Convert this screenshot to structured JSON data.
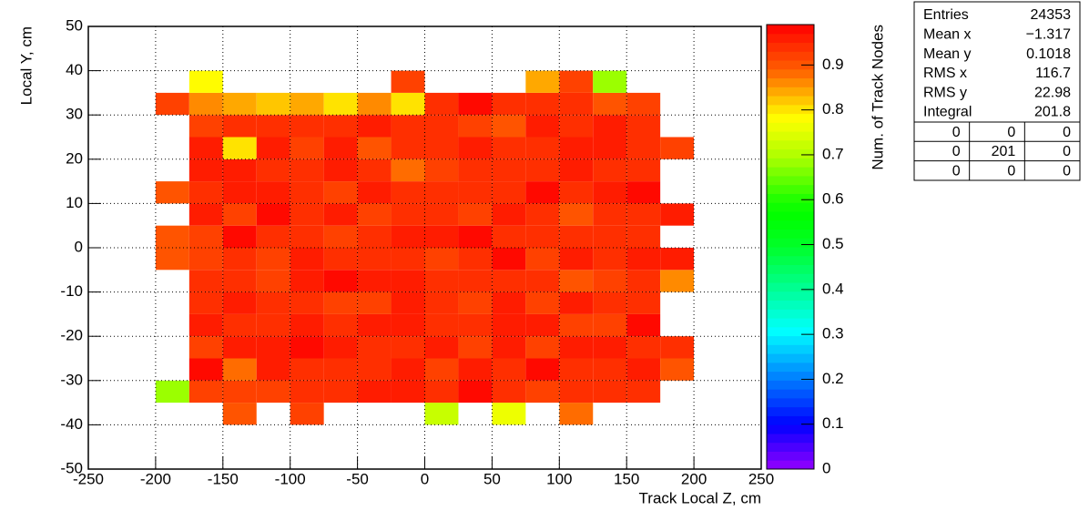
{
  "chart_data": {
    "type": "heatmap",
    "x_label": "Track Local Z, cm",
    "y_label": "Local Y, cm",
    "z_label": "Num. of Track Nodes",
    "xlim": [
      -250,
      250
    ],
    "ylim": [
      -50,
      50
    ],
    "zlim": [
      0,
      0.99
    ],
    "xticks": [
      -250,
      -200,
      -150,
      -100,
      -50,
      0,
      50,
      100,
      150,
      200,
      250
    ],
    "yticks": [
      -50,
      -40,
      -30,
      -20,
      -10,
      0,
      10,
      20,
      30,
      40,
      50
    ],
    "zticks": [
      0,
      0.1,
      0.2,
      0.3,
      0.4,
      0.5,
      0.6,
      0.7,
      0.8,
      0.9
    ],
    "grid": true,
    "palette": "rainbow",
    "xbins": [
      -200,
      -175,
      -150,
      -125,
      -100,
      -75,
      -50,
      -25,
      0,
      25,
      50,
      75,
      100,
      125,
      150,
      175,
      200
    ],
    "ybins": [
      -40,
      -35,
      -30,
      -25,
      -20,
      -15,
      -10,
      -5,
      0,
      5,
      10,
      15,
      20,
      25,
      30,
      35,
      40
    ],
    "z": [
      [
        null,
        null,
        0.91,
        null,
        0.93,
        null,
        null,
        null,
        0.72,
        null,
        0.76,
        null,
        0.89,
        null,
        null,
        null
      ],
      [
        0.68,
        0.93,
        0.93,
        0.93,
        0.95,
        0.94,
        0.96,
        0.96,
        0.94,
        0.98,
        0.95,
        0.93,
        0.95,
        0.95,
        0.95,
        null
      ],
      [
        null,
        0.98,
        0.88,
        0.96,
        0.94,
        0.94,
        0.95,
        0.96,
        0.93,
        0.96,
        0.95,
        0.98,
        0.95,
        0.94,
        0.96,
        0.9
      ],
      [
        null,
        0.93,
        0.96,
        0.96,
        0.98,
        0.96,
        0.94,
        0.95,
        0.96,
        0.93,
        0.96,
        0.92,
        0.96,
        0.97,
        0.95,
        0.95
      ],
      [
        null,
        0.97,
        0.94,
        0.94,
        0.96,
        0.94,
        0.96,
        0.96,
        0.95,
        0.94,
        0.96,
        0.96,
        0.92,
        0.92,
        0.98,
        null
      ],
      [
        null,
        0.94,
        0.96,
        0.94,
        0.94,
        0.92,
        0.92,
        0.96,
        0.94,
        0.92,
        0.97,
        0.93,
        0.96,
        0.94,
        0.94,
        null
      ],
      [
        null,
        0.94,
        0.95,
        0.93,
        0.96,
        0.98,
        0.97,
        0.97,
        0.95,
        0.94,
        0.94,
        0.94,
        0.9,
        0.93,
        0.95,
        0.87
      ],
      [
        0.91,
        0.92,
        0.95,
        0.93,
        0.96,
        0.94,
        0.94,
        0.94,
        0.92,
        0.95,
        0.98,
        0.93,
        0.96,
        0.94,
        0.96,
        0.96
      ],
      [
        0.91,
        0.93,
        0.98,
        0.94,
        0.95,
        0.93,
        0.95,
        0.96,
        0.96,
        0.98,
        0.94,
        0.94,
        0.95,
        0.95,
        0.95,
        null
      ],
      [
        null,
        0.97,
        0.93,
        0.99,
        0.95,
        0.97,
        0.93,
        0.94,
        0.95,
        0.93,
        0.96,
        0.95,
        0.9,
        0.95,
        0.95,
        0.97
      ],
      [
        0.91,
        0.95,
        0.96,
        0.96,
        0.95,
        0.93,
        0.96,
        0.95,
        0.95,
        0.95,
        0.95,
        0.98,
        0.95,
        0.96,
        0.98,
        null
      ],
      [
        null,
        0.97,
        0.96,
        0.94,
        0.95,
        0.96,
        0.94,
        0.88,
        0.93,
        0.95,
        0.95,
        0.95,
        0.96,
        0.94,
        0.94,
        null
      ],
      [
        null,
        0.96,
        0.8,
        0.96,
        0.93,
        0.96,
        0.9,
        0.95,
        0.95,
        0.96,
        0.95,
        0.95,
        0.97,
        0.96,
        0.95,
        0.93
      ],
      [
        null,
        0.93,
        0.95,
        0.95,
        0.95,
        0.95,
        0.96,
        0.95,
        0.94,
        0.92,
        0.9,
        0.97,
        0.95,
        0.97,
        0.95,
        null
      ],
      [
        0.93,
        0.86,
        0.85,
        0.83,
        0.85,
        0.8,
        0.86,
        0.8,
        0.94,
        0.98,
        0.95,
        0.95,
        0.94,
        0.91,
        0.92,
        null
      ],
      [
        null,
        0.78,
        null,
        null,
        null,
        null,
        null,
        0.92,
        null,
        null,
        null,
        0.85,
        0.93,
        0.68,
        null,
        null
      ]
    ],
    "stats": [
      {
        "label": "Entries",
        "value": "24353"
      },
      {
        "label": "Mean x",
        "value": "−1.317"
      },
      {
        "label": "Mean y",
        "value": "0.1018"
      },
      {
        "label": "RMS x",
        "value": "116.7"
      },
      {
        "label": "RMS y",
        "value": "22.98"
      },
      {
        "label": "Integral",
        "value": "201.8"
      }
    ],
    "overflow": [
      [
        "0",
        "0",
        "0"
      ],
      [
        "0",
        "201",
        "0"
      ],
      [
        "0",
        "0",
        "0"
      ]
    ]
  }
}
